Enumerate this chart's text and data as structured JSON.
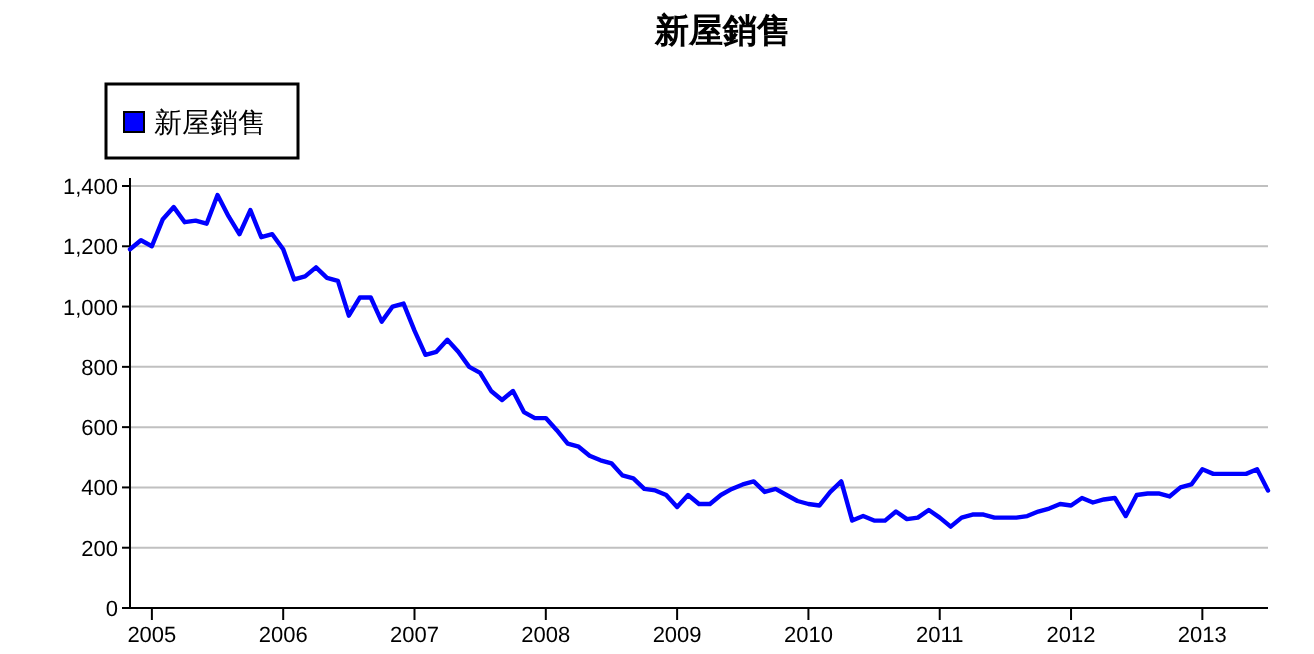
{
  "chart_data": {
    "type": "line",
    "title": "新屋銷售",
    "x": [
      "2004-11",
      "2004-12",
      "2005-01",
      "2005-02",
      "2005-03",
      "2005-04",
      "2005-05",
      "2005-06",
      "2005-07",
      "2005-08",
      "2005-09",
      "2005-10",
      "2005-11",
      "2005-12",
      "2006-01",
      "2006-02",
      "2006-03",
      "2006-04",
      "2006-05",
      "2006-06",
      "2006-07",
      "2006-08",
      "2006-09",
      "2006-10",
      "2006-11",
      "2006-12",
      "2007-01",
      "2007-02",
      "2007-03",
      "2007-04",
      "2007-05",
      "2007-06",
      "2007-07",
      "2007-08",
      "2007-09",
      "2007-10",
      "2007-11",
      "2007-12",
      "2008-01",
      "2008-02",
      "2008-03",
      "2008-04",
      "2008-05",
      "2008-06",
      "2008-07",
      "2008-08",
      "2008-09",
      "2008-10",
      "2008-11",
      "2008-12",
      "2009-01",
      "2009-02",
      "2009-03",
      "2009-04",
      "2009-05",
      "2009-06",
      "2009-07",
      "2009-08",
      "2009-09",
      "2009-10",
      "2009-11",
      "2009-12",
      "2010-01",
      "2010-02",
      "2010-03",
      "2010-04",
      "2010-05",
      "2010-06",
      "2010-07",
      "2010-08",
      "2010-09",
      "2010-10",
      "2010-11",
      "2010-12",
      "2011-01",
      "2011-02",
      "2011-03",
      "2011-04",
      "2011-05",
      "2011-06",
      "2011-07",
      "2011-08",
      "2011-09",
      "2011-10",
      "2011-11",
      "2011-12",
      "2012-01",
      "2012-02",
      "2012-03",
      "2012-04",
      "2012-05",
      "2012-06",
      "2012-07",
      "2012-08",
      "2012-09",
      "2012-10",
      "2012-11",
      "2012-12",
      "2013-01",
      "2013-02",
      "2013-03",
      "2013-04",
      "2013-05",
      "2013-06",
      "2013-07"
    ],
    "series": [
      {
        "name": "新屋銷售",
        "color": "#0000ff",
        "values": [
          1190,
          1220,
          1200,
          1290,
          1330,
          1280,
          1285,
          1275,
          1370,
          1300,
          1240,
          1320,
          1230,
          1240,
          1190,
          1090,
          1100,
          1130,
          1095,
          1085,
          970,
          1030,
          1030,
          950,
          1000,
          1010,
          920,
          840,
          850,
          890,
          850,
          800,
          780,
          720,
          690,
          720,
          650,
          630,
          630,
          590,
          545,
          535,
          505,
          490,
          480,
          440,
          430,
          395,
          390,
          375,
          335,
          375,
          345,
          345,
          375,
          395,
          410,
          420,
          385,
          395,
          375,
          355,
          345,
          340,
          385,
          420,
          290,
          305,
          290,
          290,
          320,
          295,
          300,
          325,
          300,
          270,
          300,
          310,
          310,
          300,
          300,
          300,
          305,
          320,
          330,
          345,
          340,
          365,
          350,
          360,
          365,
          305,
          375,
          380,
          380,
          370,
          400,
          410,
          460,
          445,
          445,
          445,
          445,
          460,
          390
        ]
      }
    ],
    "xlim": [
      "2004-11",
      "2013-07"
    ],
    "xticks": [
      "2005",
      "2006",
      "2007",
      "2008",
      "2009",
      "2010",
      "2011",
      "2012",
      "2013"
    ],
    "ylim": [
      0,
      1400
    ],
    "yticks": [
      0,
      200,
      400,
      600,
      800,
      {
        "value": 1000,
        "label": "1,000"
      },
      {
        "value": 1200,
        "label": "1,200"
      },
      {
        "value": 1400,
        "label": "1,400"
      }
    ],
    "grid": "y",
    "legend": "top left"
  }
}
